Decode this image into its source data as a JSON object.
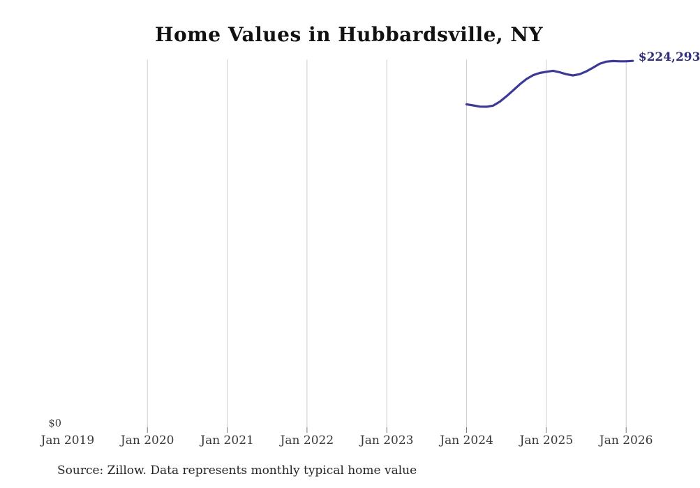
{
  "title": "Home Values in Hubbardsville, NY",
  "source_note": "Source: Zillow. Data represents monthly typical home value",
  "end_value_label": "$224,293",
  "y_zero_label": "$0",
  "colors": {
    "background": "#ffffff",
    "line": "#3c3a97",
    "end_label": "#312f7e",
    "grid": "#cccccc",
    "tick": "#777777",
    "axis_text": "#3a3a3a",
    "title_text": "#111111",
    "source_text": "#262626"
  },
  "chart_data": {
    "type": "line",
    "title": "Home Values in Hubbardsville, NY",
    "xlabel": "",
    "ylabel": "",
    "x_tick_labels": [
      "Jan 2019",
      "Jan 2020",
      "Jan 2021",
      "Jan 2022",
      "Jan 2023",
      "Jan 2024",
      "Jan 2025",
      "Jan 2026"
    ],
    "x_gridlines_at": [
      "Jan 2020",
      "Jan 2021",
      "Jan 2022",
      "Jan 2023",
      "Jan 2024",
      "Jan 2025",
      "Jan 2026"
    ],
    "y_axis": {
      "tick_labels": [
        "$0"
      ],
      "ylim": [
        0,
        225000
      ],
      "gridlines": false
    },
    "legend": "none",
    "series": [
      {
        "name": "Monthly typical home value",
        "start": "2024-01",
        "frequency": "monthly",
        "values": [
          197700,
          197000,
          196300,
          196200,
          196900,
          199300,
          202600,
          206200,
          209900,
          213100,
          215500,
          216900,
          217600,
          218200,
          217300,
          216100,
          215400,
          216100,
          217800,
          220100,
          222500,
          223800,
          224200,
          224000,
          224000,
          224293
        ],
        "last_value_label": "$224,293"
      }
    ]
  }
}
